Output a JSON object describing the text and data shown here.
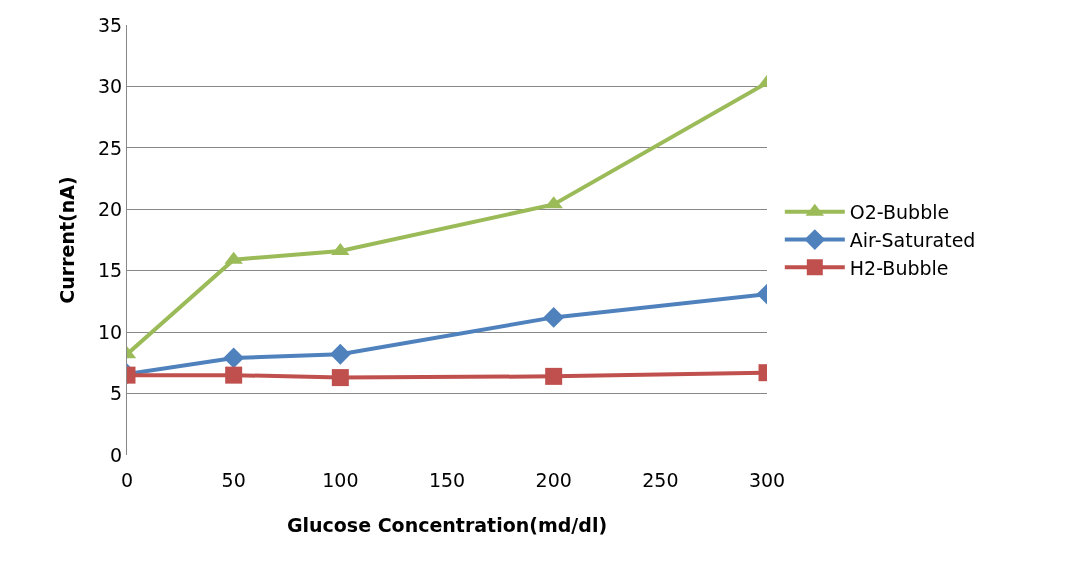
{
  "chart_data": {
    "type": "line",
    "xlabel": "Glucose Concentration(md/dl)",
    "ylabel": "Current(nA)",
    "x": [
      0,
      50,
      100,
      200,
      300
    ],
    "series": [
      {
        "name": "O2-Bubble",
        "color": "#9bbb59",
        "marker": "triangle",
        "values": [
          8.2,
          15.9,
          16.6,
          20.4,
          30.3
        ]
      },
      {
        "name": "Air-Saturated",
        "color": "#4f81bd",
        "marker": "diamond",
        "values": [
          6.6,
          7.9,
          8.2,
          11.2,
          13.1
        ]
      },
      {
        "name": "H2-Bubble",
        "color": "#c0504d",
        "marker": "square",
        "values": [
          6.5,
          6.5,
          6.3,
          6.4,
          6.7
        ]
      }
    ],
    "xlim": [
      0,
      300
    ],
    "xticks": [
      0,
      50,
      100,
      150,
      200,
      250,
      300
    ],
    "ylim": [
      0,
      35
    ],
    "yticks": [
      0,
      5,
      10,
      15,
      20,
      25,
      30,
      35
    ],
    "grid": "y",
    "legend": "right",
    "line_style": "solid"
  }
}
